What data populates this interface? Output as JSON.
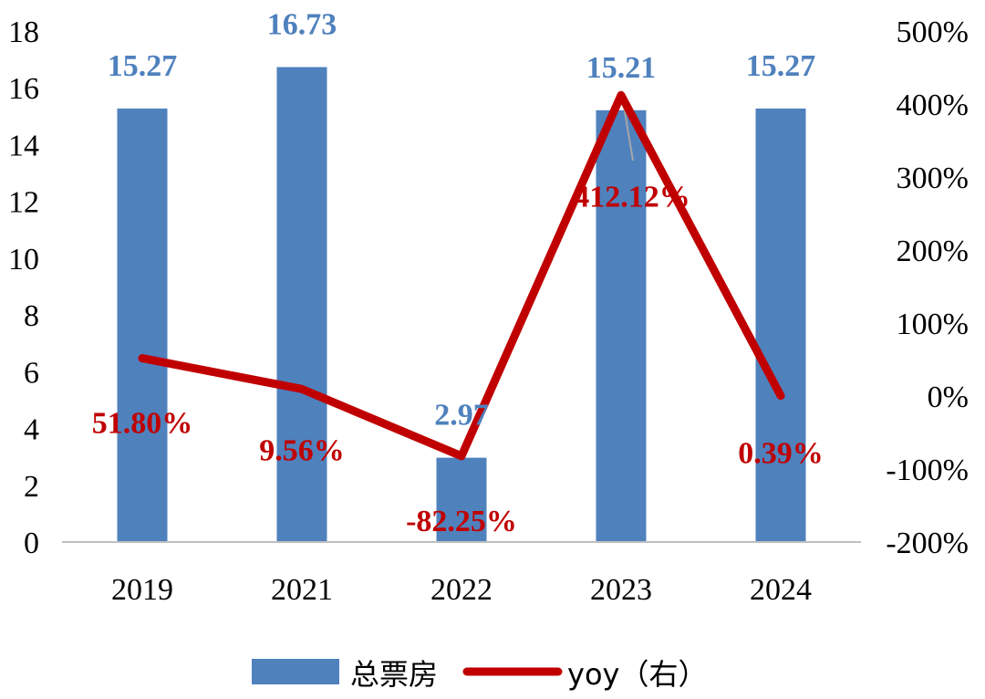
{
  "chart_data": {
    "type": "bar+line",
    "categories": [
      "2019",
      "2021",
      "2022",
      "2023",
      "2024"
    ],
    "series": [
      {
        "name": "总票房",
        "type": "bar",
        "axis": "left",
        "values": [
          15.27,
          16.73,
          2.97,
          15.21,
          15.27
        ],
        "labels": [
          "15.27",
          "16.73",
          "2.97",
          "15.21",
          "15.27"
        ],
        "color": "#4f81bd"
      },
      {
        "name": "yoy（右）",
        "type": "line",
        "axis": "right",
        "values": [
          51.8,
          9.56,
          -82.25,
          412.12,
          0.39
        ],
        "labels": [
          "51.80%",
          "9.56%",
          "-82.25%",
          "412.12%",
          "0.39%"
        ],
        "color": "#c00000"
      }
    ],
    "y_left": {
      "range": [
        0,
        18
      ],
      "ticks": [
        "0",
        "2",
        "4",
        "6",
        "8",
        "10",
        "12",
        "14",
        "16",
        "18"
      ]
    },
    "y_right": {
      "range": [
        -200,
        500
      ],
      "ticks": [
        "-200%",
        "-100%",
        "0%",
        "100%",
        "200%",
        "300%",
        "400%",
        "500%"
      ]
    },
    "legend": "bottom-center",
    "grid": false
  }
}
